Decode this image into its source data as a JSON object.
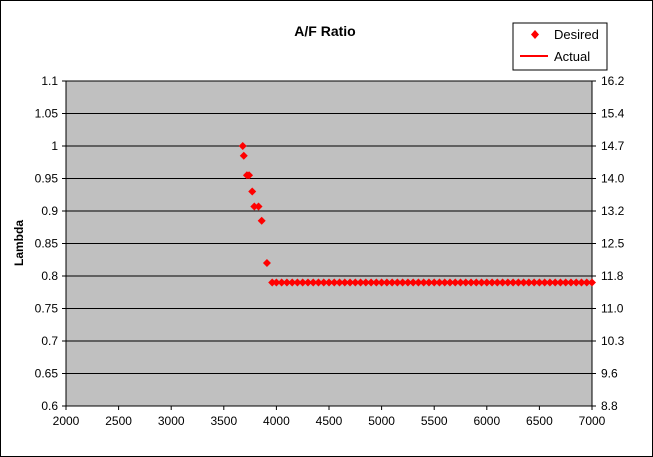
{
  "chart_data": {
    "type": "scatter",
    "title": "A/F Ratio",
    "xlabel": "",
    "ylabel": "Lambda",
    "xlim": [
      2000,
      7000
    ],
    "ylim": [
      0.6,
      1.1
    ],
    "x_ticks": [
      "2000",
      "2500",
      "3000",
      "3500",
      "4000",
      "4500",
      "5000",
      "5500",
      "6000",
      "6500",
      "7000"
    ],
    "y_ticks": [
      "0.6",
      "0.65",
      "0.7",
      "0.75",
      "0.8",
      "0.85",
      "0.9",
      "0.95",
      "1",
      "1.05",
      "1.1"
    ],
    "y2_ticks": [
      "8.8",
      "9.6",
      "10.3",
      "11.0",
      "11.8",
      "12.5",
      "13.2",
      "14.0",
      "14.7",
      "15.4",
      "16.2"
    ],
    "grid": "horizontal",
    "legend_position": "top-right",
    "series": [
      {
        "name": "Desired",
        "marker": "diamond",
        "color": "#ff0000",
        "points": [
          [
            3680,
            1.0
          ],
          [
            3690,
            0.985
          ],
          [
            3720,
            0.955
          ],
          [
            3740,
            0.955
          ],
          [
            3770,
            0.93
          ],
          [
            3790,
            0.907
          ],
          [
            3830,
            0.907
          ],
          [
            3860,
            0.885
          ],
          [
            3910,
            0.82
          ],
          [
            3960,
            0.79
          ],
          [
            4000,
            0.79
          ],
          [
            4050,
            0.79
          ],
          [
            4100,
            0.79
          ],
          [
            4150,
            0.79
          ],
          [
            4200,
            0.79
          ],
          [
            4250,
            0.79
          ],
          [
            4300,
            0.79
          ],
          [
            4350,
            0.79
          ],
          [
            4400,
            0.79
          ],
          [
            4450,
            0.79
          ],
          [
            4500,
            0.79
          ],
          [
            4550,
            0.79
          ],
          [
            4600,
            0.79
          ],
          [
            4650,
            0.79
          ],
          [
            4700,
            0.79
          ],
          [
            4750,
            0.79
          ],
          [
            4800,
            0.79
          ],
          [
            4850,
            0.79
          ],
          [
            4900,
            0.79
          ],
          [
            4950,
            0.79
          ],
          [
            5000,
            0.79
          ],
          [
            5050,
            0.79
          ],
          [
            5100,
            0.79
          ],
          [
            5150,
            0.79
          ],
          [
            5200,
            0.79
          ],
          [
            5250,
            0.79
          ],
          [
            5300,
            0.79
          ],
          [
            5350,
            0.79
          ],
          [
            5400,
            0.79
          ],
          [
            5450,
            0.79
          ],
          [
            5500,
            0.79
          ],
          [
            5550,
            0.79
          ],
          [
            5600,
            0.79
          ],
          [
            5650,
            0.79
          ],
          [
            5700,
            0.79
          ],
          [
            5750,
            0.79
          ],
          [
            5800,
            0.79
          ],
          [
            5850,
            0.79
          ],
          [
            5900,
            0.79
          ],
          [
            5950,
            0.79
          ],
          [
            6000,
            0.79
          ],
          [
            6050,
            0.79
          ],
          [
            6100,
            0.79
          ],
          [
            6150,
            0.79
          ],
          [
            6200,
            0.79
          ],
          [
            6250,
            0.79
          ],
          [
            6300,
            0.79
          ],
          [
            6350,
            0.79
          ],
          [
            6400,
            0.79
          ],
          [
            6450,
            0.79
          ],
          [
            6500,
            0.79
          ],
          [
            6550,
            0.79
          ],
          [
            6600,
            0.79
          ],
          [
            6650,
            0.79
          ],
          [
            6700,
            0.79
          ],
          [
            6750,
            0.79
          ],
          [
            6800,
            0.79
          ],
          [
            6850,
            0.79
          ],
          [
            6900,
            0.79
          ],
          [
            6950,
            0.79
          ],
          [
            7000,
            0.79
          ]
        ]
      },
      {
        "name": "Actual",
        "marker": "line",
        "color": "#ff0000",
        "points": []
      }
    ]
  },
  "colors": {
    "plot_background": "#c0c0c0",
    "gridline": "#000000",
    "marker": "#ff0000"
  }
}
